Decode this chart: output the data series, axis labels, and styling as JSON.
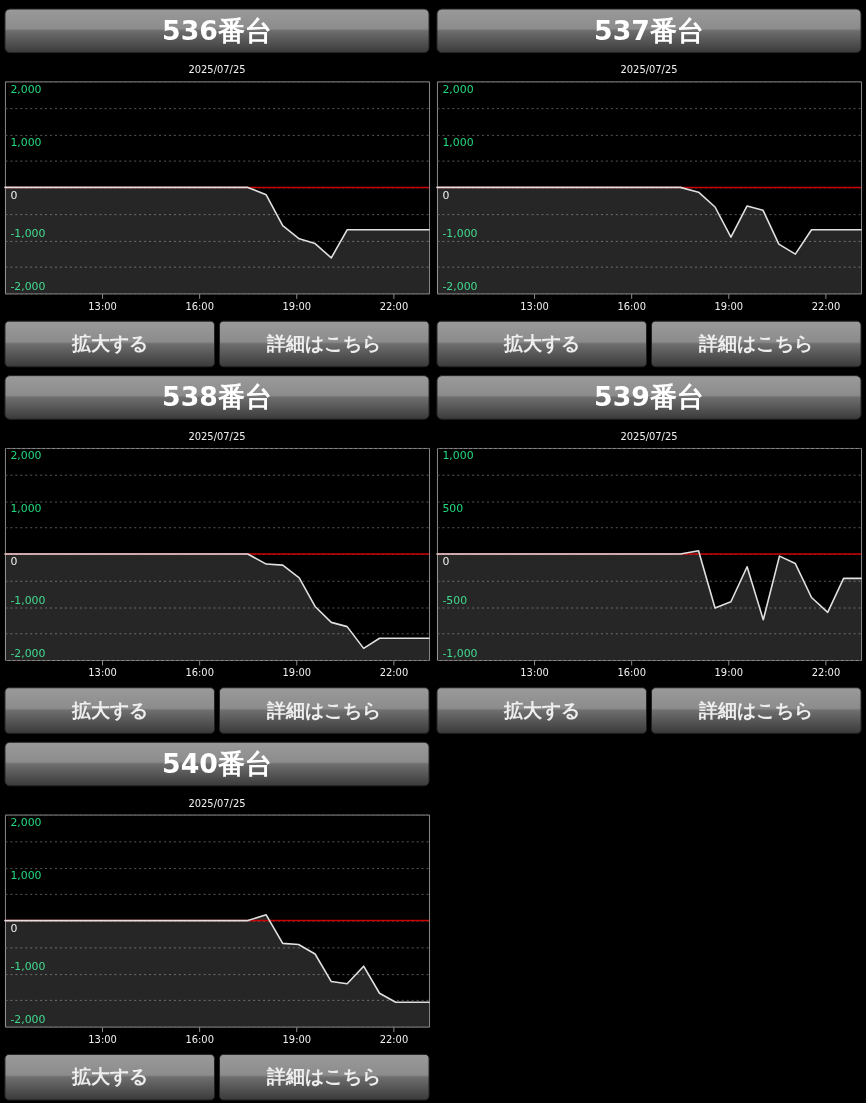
{
  "chart_data": [
    {
      "type": "line",
      "title": "536番台",
      "subtitle": "2025/07/25",
      "x": [
        10,
        17.5,
        18.07,
        18.58,
        19.09,
        19.58,
        20.08,
        20.57,
        23.1
      ],
      "series": [
        {
          "color": "#e0e0e0",
          "values": [
            0,
            0,
            -140,
            -720,
            -970,
            -1060,
            -1330,
            -800,
            -800
          ],
          "lower": [
            -2000,
            -2000,
            -2000,
            -2000,
            -2000,
            -2000,
            -2000,
            -2000,
            -2000
          ],
          "upper": [
            0,
            0,
            -140,
            -720,
            -970,
            -1060,
            -1330,
            -800,
            -800
          ]
        }
      ],
      "xlim": [
        10,
        23.1
      ],
      "xticks": [
        {
          "value": 13,
          "label": "13:00"
        },
        {
          "value": 16,
          "label": "16:00"
        },
        {
          "value": 19,
          "label": "19:00"
        },
        {
          "value": 22,
          "label": "22:00"
        }
      ],
      "ylim": [
        -2000,
        2000
      ],
      "yticks": [
        {
          "value": -2000,
          "label": "-2,000"
        },
        {
          "value": -1500,
          "label": null
        },
        {
          "value": -1000,
          "label": "-1,000"
        },
        {
          "value": -500,
          "label": null
        },
        0,
        {
          "value": 500,
          "label": null
        },
        {
          "value": 1000,
          "label": "1,000"
        },
        {
          "value": 1500,
          "label": null
        },
        {
          "value": 2000,
          "label": "2,000"
        }
      ],
      "ref_lines": [
        {
          "axis": "y",
          "value": 0,
          "color": "#cc0000"
        }
      ],
      "grid": "y",
      "annotations": [
        "拡大する",
        "詳細はこちら"
      ]
    },
    {
      "type": "line",
      "title": "537番台",
      "subtitle": "2025/07/25",
      "x": [
        10,
        17.52,
        18.08,
        18.59,
        19.08,
        19.58,
        20.07,
        20.56,
        21.07,
        21.57,
        23.1
      ],
      "series": [
        {
          "color": "#e0e0e0",
          "values": [
            0,
            0,
            -90,
            -370,
            -940,
            -350,
            -430,
            -1070,
            -1260,
            -800,
            -800
          ],
          "lower": [
            -2000,
            -2000,
            -2000,
            -2000,
            -2000,
            -2000,
            -2000,
            -2000,
            -2000,
            -2000,
            -2000
          ],
          "upper": [
            0,
            0,
            -90,
            -370,
            -940,
            -350,
            -430,
            -1070,
            -1260,
            -800,
            -800
          ]
        }
      ],
      "xlim": [
        10,
        23.1
      ],
      "xticks": [
        {
          "value": 13,
          "label": "13:00"
        },
        {
          "value": 16,
          "label": "16:00"
        },
        {
          "value": 19,
          "label": "19:00"
        },
        {
          "value": 22,
          "label": "22:00"
        }
      ],
      "ylim": [
        -2000,
        2000
      ],
      "yticks": [
        {
          "value": -2000,
          "label": "-2,000"
        },
        {
          "value": -1500,
          "label": null
        },
        {
          "value": -1000,
          "label": "-1,000"
        },
        {
          "value": -500,
          "label": null
        },
        0,
        {
          "value": 500,
          "label": null
        },
        {
          "value": 1000,
          "label": "1,000"
        },
        {
          "value": 1500,
          "label": null
        },
        {
          "value": 2000,
          "label": "2,000"
        }
      ],
      "ref_lines": [
        {
          "axis": "y",
          "value": 0,
          "color": "#cc0000"
        }
      ],
      "grid": "y",
      "annotations": [
        "拡大する",
        "詳細はこちら"
      ]
    },
    {
      "type": "line",
      "title": "538番台",
      "subtitle": "2025/07/25",
      "x": [
        10,
        17.5,
        18.07,
        18.58,
        19.09,
        19.58,
        20.08,
        20.57,
        21.08,
        21.57,
        23.1
      ],
      "series": [
        {
          "color": "#e0e0e0",
          "values": [
            0,
            0,
            -190,
            -210,
            -450,
            -990,
            -1290,
            -1370,
            -1780,
            -1590,
            -1590
          ],
          "lower": [
            -2000,
            -2000,
            -2000,
            -2000,
            -2000,
            -2000,
            -2000,
            -2000,
            -2000,
            -2000,
            -2000
          ],
          "upper": [
            0,
            0,
            -190,
            -210,
            -450,
            -990,
            -1290,
            -1370,
            -1780,
            -1590,
            -1590
          ]
        }
      ],
      "xlim": [
        10,
        23.1
      ],
      "xticks": [
        {
          "value": 13,
          "label": "13:00"
        },
        {
          "value": 16,
          "label": "16:00"
        },
        {
          "value": 19,
          "label": "19:00"
        },
        {
          "value": 22,
          "label": "22:00"
        }
      ],
      "ylim": [
        -2000,
        2000
      ],
      "yticks": [
        {
          "value": -2000,
          "label": "-2,000"
        },
        {
          "value": -1500,
          "label": null
        },
        {
          "value": -1000,
          "label": "-1,000"
        },
        {
          "value": -500,
          "label": null
        },
        0,
        {
          "value": 500,
          "label": null
        },
        {
          "value": 1000,
          "label": "1,000"
        },
        {
          "value": 1500,
          "label": null
        },
        {
          "value": 2000,
          "label": "2,000"
        }
      ],
      "ref_lines": [
        {
          "axis": "y",
          "value": 0,
          "color": "#cc0000"
        }
      ],
      "grid": "y",
      "annotations": [
        "拡大する",
        "詳細はこちら"
      ]
    },
    {
      "type": "line",
      "title": "539番台",
      "subtitle": "2025/07/25",
      "x": [
        10,
        17.52,
        18.08,
        18.59,
        19.08,
        19.58,
        20.08,
        20.58,
        21.07,
        21.57,
        22.07,
        22.56,
        23.1
      ],
      "series": [
        {
          "color": "#e0e0e0",
          "values": [
            0,
            0,
            30,
            -510,
            -450,
            -120,
            -620,
            -20,
            -90,
            -410,
            -550,
            -230,
            -230
          ],
          "lower": [
            -1000,
            -1000,
            -1000,
            -1000,
            -1000,
            -1000,
            -1000,
            -1000,
            -1000,
            -1000,
            -1000,
            -1000,
            -1000
          ],
          "upper": [
            0,
            0,
            30,
            -510,
            -450,
            -120,
            -620,
            -20,
            -90,
            -410,
            -550,
            -230,
            -230
          ]
        }
      ],
      "xlim": [
        10,
        23.1
      ],
      "xticks": [
        {
          "value": 13,
          "label": "13:00"
        },
        {
          "value": 16,
          "label": "16:00"
        },
        {
          "value": 19,
          "label": "19:00"
        },
        {
          "value": 22,
          "label": "22:00"
        }
      ],
      "ylim": [
        -1000,
        1000
      ],
      "yticks": [
        {
          "value": -1000,
          "label": "-1,000"
        },
        {
          "value": -750,
          "label": null
        },
        -500,
        {
          "value": -250,
          "label": null
        },
        0,
        {
          "value": 250,
          "label": null
        },
        500,
        {
          "value": 750,
          "label": null
        },
        {
          "value": 1000,
          "label": "1,000"
        }
      ],
      "ref_lines": [
        {
          "axis": "y",
          "value": 0,
          "color": "#cc0000"
        }
      ],
      "grid": "y",
      "annotations": [
        "拡大する",
        "詳細はこちら"
      ]
    },
    {
      "type": "line",
      "title": "540番台",
      "subtitle": "2025/07/25",
      "x": [
        10,
        17.5,
        18.07,
        18.58,
        19.07,
        19.58,
        20.08,
        20.57,
        21.08,
        21.57,
        22.07,
        23.1
      ],
      "series": [
        {
          "color": "#e0e0e0",
          "values": [
            0,
            0,
            110,
            -430,
            -450,
            -630,
            -1150,
            -1190,
            -860,
            -1370,
            -1540,
            -1540
          ],
          "lower": [
            -2000,
            -2000,
            -2000,
            -2000,
            -2000,
            -2000,
            -2000,
            -2000,
            -2000,
            -2000,
            -2000,
            -2000
          ],
          "upper": [
            0,
            0,
            110,
            -430,
            -450,
            -630,
            -1150,
            -1190,
            -860,
            -1370,
            -1540,
            -1540
          ]
        }
      ],
      "xlim": [
        10,
        23.1
      ],
      "xticks": [
        {
          "value": 13,
          "label": "13:00"
        },
        {
          "value": 16,
          "label": "16:00"
        },
        {
          "value": 19,
          "label": "19:00"
        },
        {
          "value": 22,
          "label": "22:00"
        }
      ],
      "ylim": [
        -2000,
        2000
      ],
      "yticks": [
        {
          "value": -2000,
          "label": "-2,000"
        },
        {
          "value": -1500,
          "label": null
        },
        {
          "value": -1000,
          "label": "-1,000"
        },
        {
          "value": -500,
          "label": null
        },
        0,
        {
          "value": 500,
          "label": null
        },
        {
          "value": 1000,
          "label": "1,000"
        },
        {
          "value": 1500,
          "label": null
        },
        {
          "value": 2000,
          "label": "2,000"
        }
      ],
      "ref_lines": [
        {
          "axis": "y",
          "value": 0,
          "color": "#cc0000"
        }
      ],
      "grid": "y",
      "annotations": [
        "拡大する",
        "詳細はこちら"
      ]
    }
  ]
}
